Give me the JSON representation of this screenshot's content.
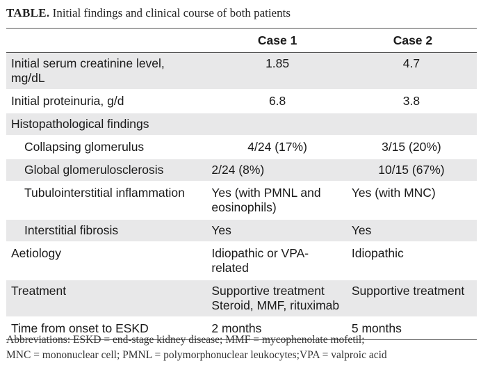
{
  "caption": {
    "lead": "TABLE.",
    "text": "Initial findings and clinical course of both patients"
  },
  "table": {
    "headers": [
      "",
      "Case 1",
      "Case 2"
    ],
    "rows": [
      {
        "label": "Initial serum creatinine level, mg/dL",
        "case1": "1.85",
        "case2": "4.7"
      },
      {
        "label": "Initial proteinuria, g/d",
        "case1": "6.8",
        "case2": "3.8"
      },
      {
        "label": "Histopathological findings",
        "case1": "",
        "case2": ""
      },
      {
        "label": "Collapsing glomerulus",
        "case1": "4/24 (17%)",
        "case2": "3/15 (20%)"
      },
      {
        "label": "Global glomerulosclerosis",
        "case1": "2/24 (8%)",
        "case2": "10/15 (67%)"
      },
      {
        "label": "Tubulointerstitial inflammation",
        "case1": "Yes (with PMNL and eosinophils)",
        "case2": "Yes (with MNC)"
      },
      {
        "label": "Interstitial fibrosis",
        "case1": "Yes",
        "case2": "Yes"
      },
      {
        "label": "Aetiology",
        "case1": "Idiopathic or VPA-related",
        "case2": "Idiopathic"
      },
      {
        "label": "Treatment",
        "case1": [
          "Supportive treatment",
          "Steroid, MMF, rituximab"
        ],
        "case2": "Supportive treatment"
      },
      {
        "label": "Time from onset to ESKD",
        "case1": "2 months",
        "case2": "5 months"
      }
    ]
  },
  "footnote": {
    "line1": "Abbreviations: ESKD = end-stage kidney disease; MMF = mycophenolate mofetil;",
    "line2": "MNC = mononuclear cell; PMNL = polymorphonuclear leukocytes;VPA = valproic acid"
  }
}
